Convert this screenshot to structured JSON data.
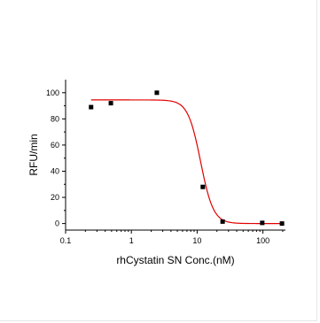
{
  "chart_data": {
    "type": "scatter",
    "title": "",
    "xlabel": "rhCystatin SN Conc.(nM)",
    "ylabel": "RFU/min",
    "xscale": "log",
    "xlim": [
      0.1,
      220
    ],
    "ylim": [
      -5,
      110
    ],
    "xticks": [
      0.1,
      1,
      10,
      100
    ],
    "xtick_labels": [
      "0.1",
      "1",
      "10",
      "100"
    ],
    "yticks": [
      0,
      20,
      40,
      60,
      80,
      100
    ],
    "ytick_labels": [
      "0",
      "20",
      "40",
      "60",
      "80",
      "100"
    ],
    "grid": false,
    "legend": "none",
    "series": [
      {
        "kind": "points",
        "marker": "square",
        "color": "#000000",
        "x": [
          0.244,
          0.488,
          2.44,
          12.2,
          24.4,
          97.7,
          195
        ],
        "y": [
          89,
          92,
          100,
          28,
          1.5,
          0.5,
          0
        ]
      },
      {
        "kind": "fit-curve",
        "model": "four-parameter-logistic",
        "color": "#e00000",
        "top": 94.5,
        "bottom": 0,
        "ic50": 11.3,
        "hill": 4.5,
        "x_range": [
          0.244,
          200
        ]
      }
    ]
  }
}
